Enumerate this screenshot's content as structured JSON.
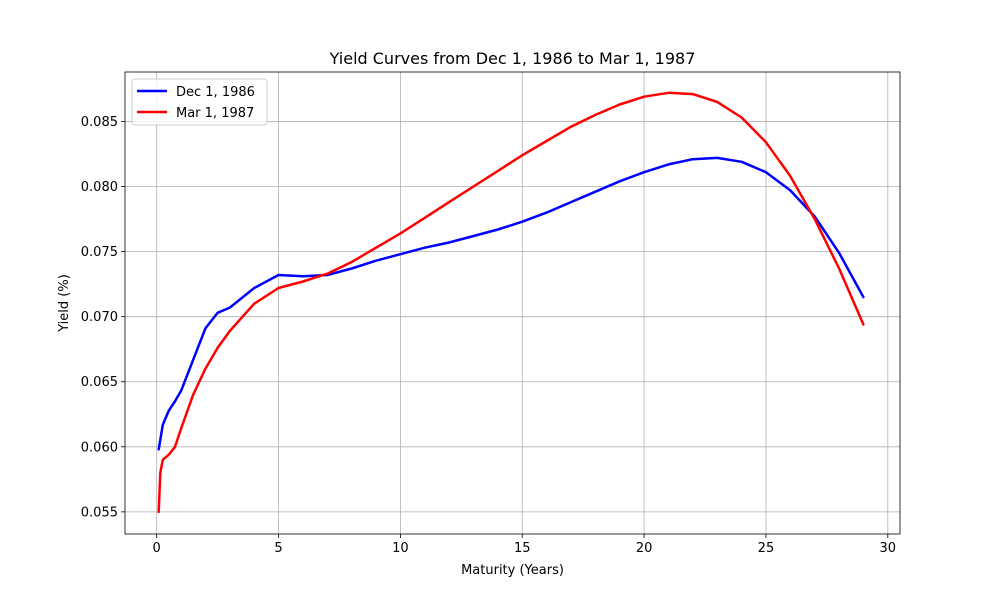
{
  "chart_data": {
    "type": "line",
    "title": "Yield Curves from Dec 1, 1986 to Mar 1, 1987",
    "xlabel": "Maturity (Years)",
    "ylabel": "Yield (%)",
    "xlim": [
      -1.3,
      30.5
    ],
    "ylim": [
      0.0533,
      0.0888
    ],
    "xticks": [
      0,
      5,
      10,
      15,
      20,
      25,
      30
    ],
    "yticks": [
      0.055,
      0.06,
      0.065,
      0.07,
      0.075,
      0.08,
      0.085
    ],
    "xtick_labels": [
      "0",
      "5",
      "10",
      "15",
      "20",
      "25",
      "30"
    ],
    "ytick_labels": [
      "0.055",
      "0.060",
      "0.065",
      "0.070",
      "0.075",
      "0.080",
      "0.085"
    ],
    "grid": true,
    "legend_position": "upper-left",
    "series": [
      {
        "name": "Dec 1, 1986",
        "color": "#0000ff",
        "x": [
          0.083,
          0.25,
          0.5,
          0.75,
          1,
          2,
          2.5,
          3,
          4,
          5,
          6,
          7,
          8,
          9,
          10,
          11,
          12,
          13,
          14,
          15,
          16,
          17,
          18,
          19,
          20,
          21,
          22,
          23,
          24,
          25,
          26,
          27,
          28,
          29
        ],
        "y": [
          0.0598,
          0.0617,
          0.0628,
          0.0635,
          0.0643,
          0.0691,
          0.0703,
          0.0707,
          0.0722,
          0.0732,
          0.0731,
          0.0732,
          0.0737,
          0.0743,
          0.0748,
          0.0753,
          0.0757,
          0.0762,
          0.0767,
          0.0773,
          0.078,
          0.0788,
          0.0796,
          0.0804,
          0.0811,
          0.0817,
          0.0821,
          0.0822,
          0.0819,
          0.0811,
          0.0797,
          0.0777,
          0.0749,
          0.0715
        ]
      },
      {
        "name": "Mar 1, 1987",
        "color": "#ff0000",
        "x": [
          0.083,
          0.15,
          0.25,
          0.5,
          0.75,
          1,
          1.5,
          2,
          2.5,
          3,
          4,
          5,
          6,
          7,
          8,
          9,
          10,
          11,
          12,
          13,
          14,
          15,
          16,
          17,
          18,
          19,
          20,
          21,
          22,
          23,
          24,
          25,
          26,
          27,
          28,
          29
        ],
        "y": [
          0.055,
          0.058,
          0.059,
          0.0594,
          0.06,
          0.0614,
          0.064,
          0.066,
          0.0676,
          0.0689,
          0.071,
          0.0722,
          0.0727,
          0.0733,
          0.0742,
          0.0753,
          0.0764,
          0.0776,
          0.0788,
          0.08,
          0.0812,
          0.0824,
          0.0835,
          0.0846,
          0.0855,
          0.0863,
          0.0869,
          0.0872,
          0.0871,
          0.0865,
          0.0853,
          0.0834,
          0.0808,
          0.0775,
          0.0737,
          0.0694
        ]
      }
    ]
  }
}
